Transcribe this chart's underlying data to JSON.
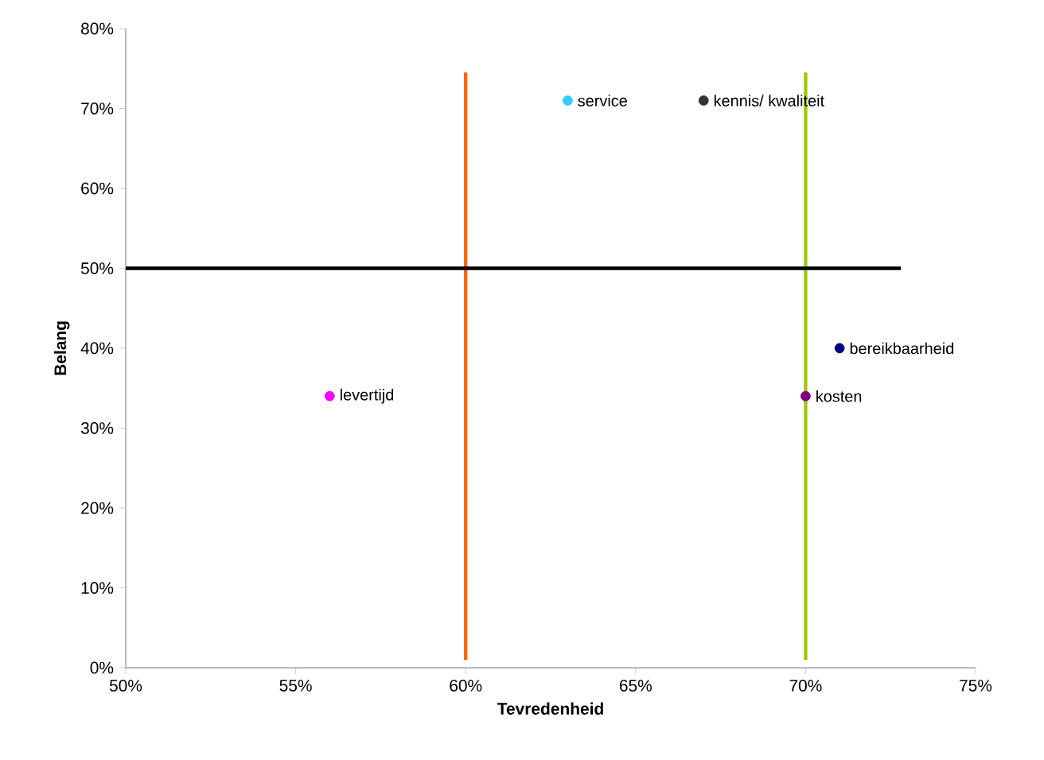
{
  "chart_data": {
    "type": "scatter",
    "xlabel": "Tevredenheid",
    "ylabel": "Belang",
    "xlim": [
      50,
      75
    ],
    "ylim": [
      0,
      80
    ],
    "xticks": [
      {
        "value": 50,
        "label": "50%"
      },
      {
        "value": 55,
        "label": "55%"
      },
      {
        "value": 60,
        "label": "60%"
      },
      {
        "value": 65,
        "label": "65%"
      },
      {
        "value": 70,
        "label": "70%"
      },
      {
        "value": 75,
        "label": "75%"
      }
    ],
    "yticks": [
      {
        "value": 0,
        "label": "0%"
      },
      {
        "value": 10,
        "label": "10%"
      },
      {
        "value": 20,
        "label": "20%"
      },
      {
        "value": 30,
        "label": "30%"
      },
      {
        "value": 40,
        "label": "40%"
      },
      {
        "value": 50,
        "label": "50%"
      },
      {
        "value": 60,
        "label": "60%"
      },
      {
        "value": 70,
        "label": "70%"
      },
      {
        "value": 80,
        "label": "80%"
      }
    ],
    "series": [
      {
        "type": "line",
        "x": [
          60,
          60
        ],
        "values": [
          1,
          74.5
        ],
        "color": "#ff6600"
      },
      {
        "type": "line",
        "x": [
          70,
          70
        ],
        "values": [
          1,
          74.5
        ],
        "color": "#99cc00"
      },
      {
        "type": "line",
        "x": [
          50,
          72.8
        ],
        "values": [
          50,
          50
        ],
        "color": "#000000"
      },
      {
        "marker": "circle",
        "x": [
          63,
          67,
          71,
          70,
          56
        ],
        "values": [
          71,
          71,
          40,
          34,
          34
        ],
        "colors": [
          "#33ccff",
          "#333333",
          "#000080",
          "#800080",
          "#ff00ff"
        ]
      }
    ],
    "annotations": [
      {
        "text": "service",
        "x": 63,
        "y": 71
      },
      {
        "text": "kennis/ kwaliteit",
        "x": 67,
        "y": 71
      },
      {
        "text": "bereikbaarheid",
        "x": 71,
        "y": 40
      },
      {
        "text": "kosten",
        "x": 70,
        "y": 34
      },
      {
        "text": "levertijd",
        "x": 56,
        "y": 34
      }
    ]
  }
}
